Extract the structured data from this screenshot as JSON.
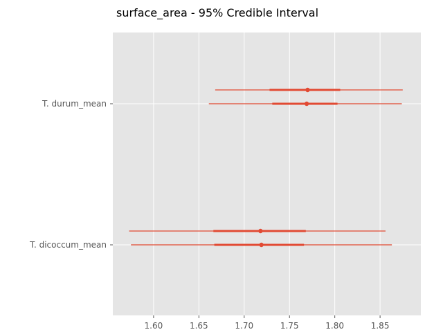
{
  "chart_data": {
    "type": "forest",
    "title": "surface_area - 95% Credible Interval",
    "xlabel": "",
    "ylabel": "",
    "xlim": [
      1.555,
      1.895
    ],
    "xticks": [
      1.6,
      1.65,
      1.7,
      1.75,
      1.8,
      1.85
    ],
    "xtick_labels": [
      "1.60",
      "1.65",
      "1.70",
      "1.75",
      "1.80",
      "1.85"
    ],
    "grid": true,
    "color": "#e24a33",
    "categories": [
      "T. durum_mean",
      "T. dicoccum_mean"
    ],
    "series": [
      {
        "chains": [
          {
            "mean": 1.77,
            "hdi_low": 1.668,
            "hdi_high": 1.875,
            "iqr_low": 1.728,
            "iqr_high": 1.806
          },
          {
            "mean": 1.769,
            "hdi_low": 1.661,
            "hdi_high": 1.874,
            "iqr_low": 1.731,
            "iqr_high": 1.803
          }
        ]
      },
      {
        "chains": [
          {
            "mean": 1.718,
            "hdi_low": 1.573,
            "hdi_high": 1.856,
            "iqr_low": 1.666,
            "iqr_high": 1.768
          },
          {
            "mean": 1.719,
            "hdi_low": 1.575,
            "hdi_high": 1.863,
            "iqr_low": 1.667,
            "iqr_high": 1.766
          }
        ]
      }
    ]
  }
}
